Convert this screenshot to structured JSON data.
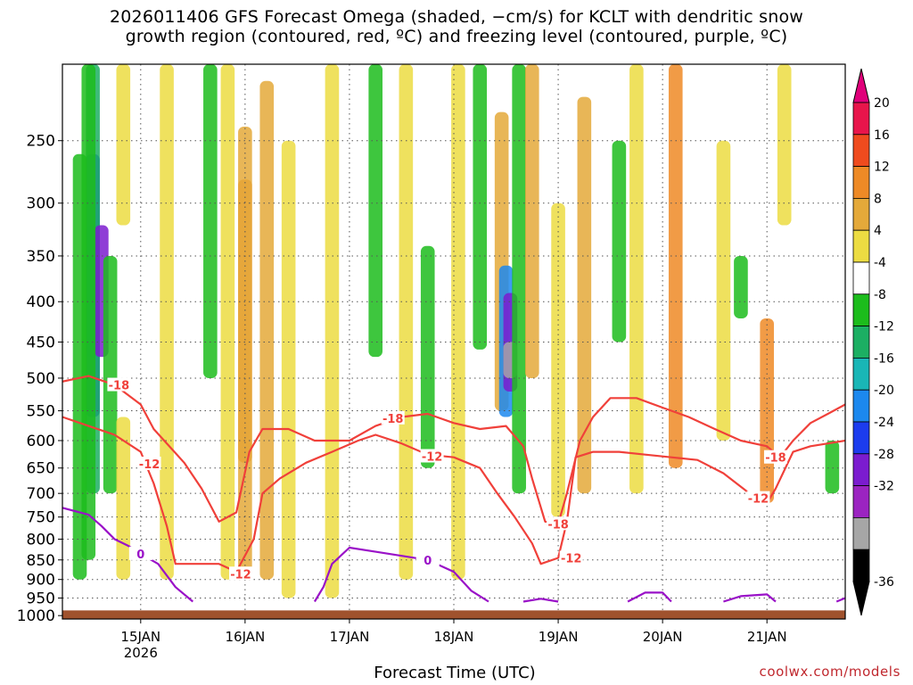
{
  "title": {
    "line1": "2026011406 GFS Forecast Omega (shaded, −cm/s) for KCLT with dendritic snow",
    "line2": "growth region (contoured, red, ºC) and freezing level (contoured, purple, ºC)"
  },
  "credit": "coolwx.com/models",
  "chart_data": {
    "type": "heatmap",
    "xlabel": "Forecast Time (UTC)",
    "x_range": [
      "2026-01-14T06:00Z",
      "2026-01-21T18:00Z"
    ],
    "x_ticks": [
      {
        "date": "2026-01-15T00:00Z",
        "label": "15JAN",
        "sublabel": "2026"
      },
      {
        "date": "2026-01-16T00:00Z",
        "label": "16JAN"
      },
      {
        "date": "2026-01-17T00:00Z",
        "label": "17JAN"
      },
      {
        "date": "2026-01-18T00:00Z",
        "label": "18JAN"
      },
      {
        "date": "2026-01-19T00:00Z",
        "label": "19JAN"
      },
      {
        "date": "2026-01-20T00:00Z",
        "label": "20JAN"
      },
      {
        "date": "2026-01-21T00:00Z",
        "label": "21JAN"
      }
    ],
    "y_range_hPa": [
      200,
      1010
    ],
    "y_scale": "log",
    "y_ticks": [
      250,
      300,
      350,
      400,
      450,
      500,
      550,
      600,
      650,
      700,
      750,
      800,
      850,
      900,
      950,
      1000
    ],
    "grid": true,
    "colorbar": {
      "unit": "-cm/s",
      "labels": [
        20,
        16,
        12,
        8,
        4,
        -4,
        -8,
        -12,
        -16,
        -20,
        -24,
        -28,
        -32,
        -36
      ],
      "colors": [
        "#e8154b",
        "#ef4b1e",
        "#ee8a26",
        "#e4a93a",
        "#ecdc42",
        "#ffffff",
        "#1cbc1c",
        "#1caf63",
        "#19b6b6",
        "#1c88ee",
        "#1c3cee",
        "#7b1ccf",
        "#9b24c1",
        "#a6a6a6",
        "#000000"
      ],
      "top_arrow_color": "#e0007a",
      "bottom_arrow_color": "#000000"
    },
    "contour_labels": {
      "dgz": [
        "-18",
        "-12"
      ],
      "freezing": "0"
    },
    "omega_cells": [
      {
        "t": "2026-01-14T13:00Z",
        "p0": 320,
        "p1": 470,
        "v": -36
      },
      {
        "t": "2026-01-14T13:00Z",
        "p0": 260,
        "p1": 560,
        "v": -24
      },
      {
        "t": "2026-01-14T13:00Z",
        "p0": 200,
        "p1": 700,
        "v": -12
      },
      {
        "t": "2026-01-14T15:00Z",
        "p0": 320,
        "p1": 470,
        "v": -28
      },
      {
        "t": "2026-01-14T12:00Z",
        "p0": 200,
        "p1": 850,
        "v": -8
      },
      {
        "t": "2026-01-14T17:00Z",
        "p0": 350,
        "p1": 700,
        "v": -8
      },
      {
        "t": "2026-01-14T10:00Z",
        "p0": 260,
        "p1": 900,
        "v": -6
      },
      {
        "t": "2026-01-14T20:00Z",
        "p0": 200,
        "p1": 320,
        "v": 6
      },
      {
        "t": "2026-01-14T20:00Z",
        "p0": 560,
        "p1": 900,
        "v": 6
      },
      {
        "t": "2026-01-15T06:00Z",
        "p0": 200,
        "p1": 900,
        "v": 6
      },
      {
        "t": "2026-01-15T16:00Z",
        "p0": 200,
        "p1": 500,
        "v": -8
      },
      {
        "t": "2026-01-15T20:00Z",
        "p0": 200,
        "p1": 900,
        "v": 6
      },
      {
        "t": "2026-01-16T00:00Z",
        "p0": 280,
        "p1": 640,
        "v": 14
      },
      {
        "t": "2026-01-16T00:00Z",
        "p0": 240,
        "p1": 900,
        "v": 8
      },
      {
        "t": "2026-01-16T05:00Z",
        "p0": 210,
        "p1": 900,
        "v": 8
      },
      {
        "t": "2026-01-16T10:00Z",
        "p0": 250,
        "p1": 950,
        "v": 6
      },
      {
        "t": "2026-01-16T20:00Z",
        "p0": 200,
        "p1": 950,
        "v": 6
      },
      {
        "t": "2026-01-17T06:00Z",
        "p0": 200,
        "p1": 470,
        "v": -8
      },
      {
        "t": "2026-01-17T13:00Z",
        "p0": 200,
        "p1": 900,
        "v": 6
      },
      {
        "t": "2026-01-17T18:00Z",
        "p0": 340,
        "p1": 650,
        "v": -8
      },
      {
        "t": "2026-01-18T01:00Z",
        "p0": 200,
        "p1": 900,
        "v": 6
      },
      {
        "t": "2026-01-18T06:00Z",
        "p0": 200,
        "p1": 460,
        "v": -8
      },
      {
        "t": "2026-01-18T11:00Z",
        "p0": 230,
        "p1": 550,
        "v": 10
      },
      {
        "t": "2026-01-18T12:00Z",
        "p0": 360,
        "p1": 560,
        "v": -20
      },
      {
        "t": "2026-01-18T13:00Z",
        "p0": 390,
        "p1": 520,
        "v": -28
      },
      {
        "t": "2026-01-18T13:00Z",
        "p0": 450,
        "p1": 500,
        "v": -36
      },
      {
        "t": "2026-01-18T15:00Z",
        "p0": 200,
        "p1": 700,
        "v": -8
      },
      {
        "t": "2026-01-18T18:00Z",
        "p0": 200,
        "p1": 500,
        "v": 8
      },
      {
        "t": "2026-01-19T00:00Z",
        "p0": 300,
        "p1": 750,
        "v": 6
      },
      {
        "t": "2026-01-19T06:00Z",
        "p0": 220,
        "p1": 700,
        "v": 10
      },
      {
        "t": "2026-01-19T14:00Z",
        "p0": 250,
        "p1": 450,
        "v": -8
      },
      {
        "t": "2026-01-19T18:00Z",
        "p0": 200,
        "p1": 700,
        "v": 6
      },
      {
        "t": "2026-01-20T03:00Z",
        "p0": 200,
        "p1": 650,
        "v": 12
      },
      {
        "t": "2026-01-20T14:00Z",
        "p0": 250,
        "p1": 600,
        "v": 6
      },
      {
        "t": "2026-01-20T18:00Z",
        "p0": 350,
        "p1": 420,
        "v": -8
      },
      {
        "t": "2026-01-21T00:00Z",
        "p0": 420,
        "p1": 720,
        "v": 12
      },
      {
        "t": "2026-01-21T04:00Z",
        "p0": 200,
        "p1": 320,
        "v": 6
      },
      {
        "t": "2026-01-21T15:00Z",
        "p0": 600,
        "p1": 700,
        "v": -8
      }
    ],
    "dgz_minus18_hPa": [
      [
        "2026-01-14T06:00Z",
        505
      ],
      [
        "2026-01-14T12:00Z",
        497
      ],
      [
        "2026-01-14T18:00Z",
        510
      ],
      [
        "2026-01-15T00:00Z",
        540
      ],
      [
        "2026-01-15T03:00Z",
        580
      ],
      [
        "2026-01-15T06:00Z",
        605
      ],
      [
        "2026-01-15T10:00Z",
        640
      ],
      [
        "2026-01-15T14:00Z",
        690
      ],
      [
        "2026-01-15T18:00Z",
        760
      ],
      [
        "2026-01-15T22:00Z",
        740
      ],
      [
        "2026-01-16T01:00Z",
        620
      ],
      [
        "2026-01-16T04:00Z",
        580
      ],
      [
        "2026-01-16T10:00Z",
        580
      ],
      [
        "2026-01-16T16:00Z",
        600
      ],
      [
        "2026-01-17T00:00Z",
        600
      ],
      [
        "2026-01-17T06:00Z",
        575
      ],
      [
        "2026-01-17T12:00Z",
        560
      ],
      [
        "2026-01-17T18:00Z",
        555
      ],
      [
        "2026-01-18T00:00Z",
        570
      ],
      [
        "2026-01-18T06:00Z",
        580
      ],
      [
        "2026-01-18T12:00Z",
        575
      ],
      [
        "2026-01-18T16:00Z",
        610
      ],
      [
        "2026-01-18T18:00Z",
        670
      ],
      [
        "2026-01-18T21:00Z",
        760
      ],
      [
        "2026-01-19T00:00Z",
        765
      ],
      [
        "2026-01-19T02:00Z",
        700
      ],
      [
        "2026-01-19T05:00Z",
        600
      ],
      [
        "2026-01-19T08:00Z",
        560
      ],
      [
        "2026-01-19T12:00Z",
        530
      ],
      [
        "2026-01-19T18:00Z",
        530
      ],
      [
        "2026-01-20T00:00Z",
        545
      ],
      [
        "2026-01-20T06:00Z",
        560
      ],
      [
        "2026-01-20T12:00Z",
        580
      ],
      [
        "2026-01-20T18:00Z",
        600
      ],
      [
        "2026-01-21T00:00Z",
        610
      ],
      [
        "2026-01-21T03:00Z",
        630
      ],
      [
        "2026-01-21T06:00Z",
        600
      ],
      [
        "2026-01-21T10:00Z",
        570
      ],
      [
        "2026-01-21T14:00Z",
        555
      ],
      [
        "2026-01-21T18:00Z",
        540
      ]
    ],
    "dgz_minus12_hPa": [
      [
        "2026-01-14T06:00Z",
        560
      ],
      [
        "2026-01-14T12:00Z",
        575
      ],
      [
        "2026-01-14T18:00Z",
        590
      ],
      [
        "2026-01-15T00:00Z",
        620
      ],
      [
        "2026-01-15T03:00Z",
        680
      ],
      [
        "2026-01-15T06:00Z",
        770
      ],
      [
        "2026-01-15T08:00Z",
        860
      ],
      [
        "2026-01-15T12:00Z",
        860
      ],
      [
        "2026-01-15T18:00Z",
        860
      ],
      [
        "2026-01-15T22:00Z",
        880
      ],
      [
        "2026-01-16T02:00Z",
        800
      ],
      [
        "2026-01-16T04:00Z",
        700
      ],
      [
        "2026-01-16T08:00Z",
        670
      ],
      [
        "2026-01-16T14:00Z",
        640
      ],
      [
        "2026-01-16T20:00Z",
        620
      ],
      [
        "2026-01-17T02:00Z",
        600
      ],
      [
        "2026-01-17T06:00Z",
        590
      ],
      [
        "2026-01-17T12:00Z",
        605
      ],
      [
        "2026-01-17T18:00Z",
        625
      ],
      [
        "2026-01-18T00:00Z",
        630
      ],
      [
        "2026-01-18T06:00Z",
        650
      ],
      [
        "2026-01-18T10:00Z",
        700
      ],
      [
        "2026-01-18T14:00Z",
        750
      ],
      [
        "2026-01-18T18:00Z",
        810
      ],
      [
        "2026-01-18T20:00Z",
        860
      ],
      [
        "2026-01-19T00:00Z",
        845
      ],
      [
        "2026-01-19T02:00Z",
        760
      ],
      [
        "2026-01-19T04:00Z",
        630
      ],
      [
        "2026-01-19T08:00Z",
        620
      ],
      [
        "2026-01-19T14:00Z",
        620
      ],
      [
        "2026-01-19T20:00Z",
        625
      ],
      [
        "2026-01-20T02:00Z",
        630
      ],
      [
        "2026-01-20T08:00Z",
        635
      ],
      [
        "2026-01-20T14:00Z",
        660
      ],
      [
        "2026-01-20T20:00Z",
        700
      ],
      [
        "2026-01-21T00:00Z",
        720
      ],
      [
        "2026-01-21T02:00Z",
        690
      ],
      [
        "2026-01-21T06:00Z",
        620
      ],
      [
        "2026-01-21T10:00Z",
        610
      ],
      [
        "2026-01-21T14:00Z",
        605
      ],
      [
        "2026-01-21T18:00Z",
        600
      ]
    ],
    "freezing_0C_segments": [
      [
        [
          "2026-01-14T06:00Z",
          730
        ],
        [
          "2026-01-14T12:00Z",
          745
        ],
        [
          "2026-01-14T15:00Z",
          770
        ],
        [
          "2026-01-14T18:00Z",
          800
        ],
        [
          "2026-01-14T21:00Z",
          815
        ],
        [
          "2026-01-15T00:00Z",
          835
        ],
        [
          "2026-01-15T04:00Z",
          860
        ],
        [
          "2026-01-15T08:00Z",
          920
        ],
        [
          "2026-01-15T12:00Z",
          960
        ]
      ],
      [
        [
          "2026-01-16T16:00Z",
          960
        ],
        [
          "2026-01-16T18:00Z",
          920
        ],
        [
          "2026-01-16T20:00Z",
          860
        ],
        [
          "2026-01-17T00:00Z",
          820
        ],
        [
          "2026-01-17T06:00Z",
          830
        ],
        [
          "2026-01-17T12:00Z",
          840
        ],
        [
          "2026-01-17T18:00Z",
          850
        ],
        [
          "2026-01-18T00:00Z",
          880
        ],
        [
          "2026-01-18T04:00Z",
          930
        ],
        [
          "2026-01-18T08:00Z",
          960
        ]
      ],
      [
        [
          "2026-01-18T16:00Z",
          960
        ],
        [
          "2026-01-18T20:00Z",
          952
        ],
        [
          "2026-01-19T00:00Z",
          960
        ]
      ],
      [
        [
          "2026-01-19T16:00Z",
          960
        ],
        [
          "2026-01-19T20:00Z",
          935
        ],
        [
          "2026-01-20T00:00Z",
          935
        ],
        [
          "2026-01-20T02:00Z",
          960
        ]
      ],
      [
        [
          "2026-01-20T14:00Z",
          960
        ],
        [
          "2026-01-20T18:00Z",
          945
        ],
        [
          "2026-01-21T00:00Z",
          940
        ],
        [
          "2026-01-21T02:00Z",
          960
        ]
      ],
      [
        [
          "2026-01-21T16:00Z",
          960
        ],
        [
          "2026-01-21T18:00Z",
          950
        ]
      ]
    ]
  }
}
